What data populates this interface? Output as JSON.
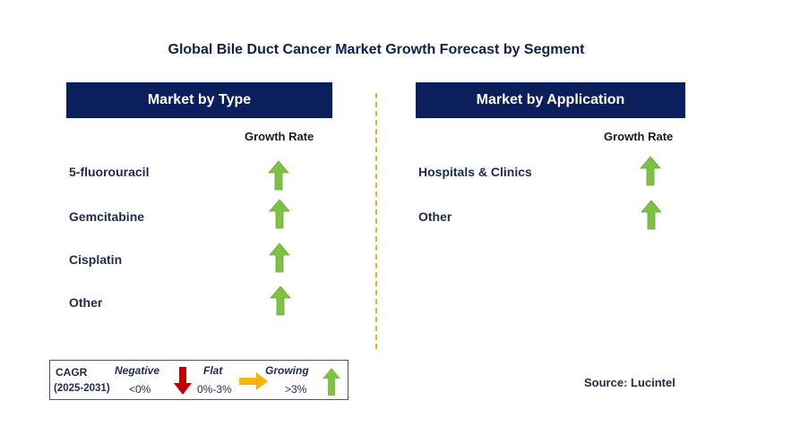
{
  "title": "Global Bile Duct Cancer Market Growth Forecast by Segment",
  "left_panel": {
    "header": "Market by Type",
    "growth_header": "Growth Rate",
    "rows": [
      {
        "label": "5-fluorouracil",
        "trend": "growing"
      },
      {
        "label": "Gemcitabine",
        "trend": "growing"
      },
      {
        "label": "Cisplatin",
        "trend": "growing"
      },
      {
        "label": "Other",
        "trend": "growing"
      }
    ]
  },
  "right_panel": {
    "header": "Market by Application",
    "growth_header": "Growth Rate",
    "rows": [
      {
        "label": "Hospitals & Clinics",
        "trend": "growing"
      },
      {
        "label": "Other",
        "trend": "growing"
      }
    ]
  },
  "legend": {
    "cagr_label": "CAGR",
    "period": "(2025-2031)",
    "negative_label": "Negative",
    "negative_range": "<0%",
    "flat_label": "Flat",
    "flat_range": "0%-3%",
    "growing_label": "Growing",
    "growing_range": ">3%"
  },
  "source": "Source: Lucintel",
  "colors": {
    "header_bg": "#0b1f5c",
    "growing": "#7dc242",
    "flat": "#f7b500",
    "negative": "#c00000",
    "divider": "#f2b51f"
  },
  "icons": {
    "growing": "green-up-arrow-icon",
    "flat": "yellow-right-arrow-icon",
    "negative": "red-down-arrow-icon"
  }
}
